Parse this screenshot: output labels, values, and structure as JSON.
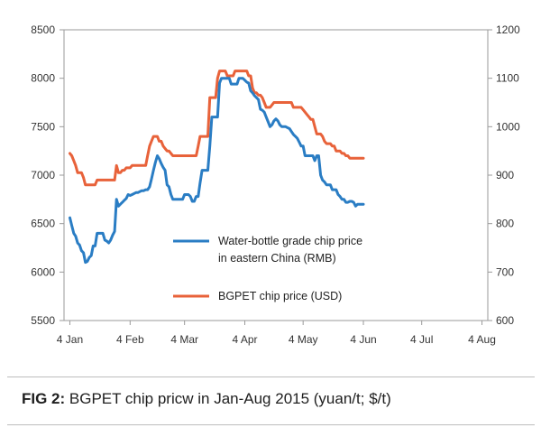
{
  "chart_data": {
    "type": "line",
    "title": "",
    "left_axis": {
      "ylim": [
        5500,
        8500
      ],
      "ticks": [
        "5500",
        "6000",
        "6500",
        "7000",
        "7500",
        "8000",
        "8500"
      ]
    },
    "right_axis": {
      "ylim": [
        600,
        1200
      ],
      "ticks": [
        "600",
        "700",
        "800",
        "900",
        "1000",
        "1100",
        "1200"
      ]
    },
    "x_axis": {
      "range": [
        1,
        219
      ],
      "ticks": [
        {
          "label": "4 Jan",
          "day": 4
        },
        {
          "label": "4 Feb",
          "day": 35
        },
        {
          "label": "4 Mar",
          "day": 63
        },
        {
          "label": "4 Apr",
          "day": 94
        },
        {
          "label": "4 May",
          "day": 124
        },
        {
          "label": "4 Jun",
          "day": 155
        },
        {
          "label": "4 Jul",
          "day": 185
        },
        {
          "label": "4 Aug",
          "day": 216
        }
      ]
    },
    "series": [
      {
        "name": "Water-bottle grade chip price in eastern China (RMB)",
        "legend_lines": [
          "Water-bottle grade chip price",
          "in eastern China (RMB)"
        ],
        "axis": "left",
        "color": "#2a7dc4",
        "points": [
          [
            4,
            6560
          ],
          [
            5,
            6480
          ],
          [
            6,
            6400
          ],
          [
            7,
            6370
          ],
          [
            8,
            6300
          ],
          [
            9,
            6280
          ],
          [
            10,
            6220
          ],
          [
            11,
            6200
          ],
          [
            12,
            6100
          ],
          [
            13,
            6110
          ],
          [
            14,
            6150
          ],
          [
            15,
            6170
          ],
          [
            16,
            6270
          ],
          [
            17,
            6270
          ],
          [
            18,
            6400
          ],
          [
            19,
            6400
          ],
          [
            20,
            6400
          ],
          [
            21,
            6400
          ],
          [
            22,
            6330
          ],
          [
            23,
            6320
          ],
          [
            24,
            6300
          ],
          [
            25,
            6330
          ],
          [
            26,
            6380
          ],
          [
            27,
            6420
          ],
          [
            28,
            6750
          ],
          [
            29,
            6680
          ],
          [
            30,
            6700
          ],
          [
            31,
            6720
          ],
          [
            32,
            6740
          ],
          [
            33,
            6760
          ],
          [
            34,
            6800
          ],
          [
            35,
            6790
          ],
          [
            36,
            6800
          ],
          [
            37,
            6810
          ],
          [
            38,
            6820
          ],
          [
            39,
            6820
          ],
          [
            40,
            6830
          ],
          [
            41,
            6840
          ],
          [
            42,
            6840
          ],
          [
            43,
            6850
          ],
          [
            44,
            6850
          ],
          [
            45,
            6880
          ],
          [
            46,
            6960
          ],
          [
            47,
            7050
          ],
          [
            48,
            7130
          ],
          [
            49,
            7200
          ],
          [
            50,
            7170
          ],
          [
            51,
            7120
          ],
          [
            52,
            7080
          ],
          [
            53,
            7050
          ],
          [
            54,
            6900
          ],
          [
            55,
            6880
          ],
          [
            56,
            6800
          ],
          [
            57,
            6750
          ],
          [
            58,
            6750
          ],
          [
            59,
            6750
          ],
          [
            60,
            6750
          ],
          [
            61,
            6750
          ],
          [
            62,
            6750
          ],
          [
            63,
            6800
          ],
          [
            64,
            6800
          ],
          [
            65,
            6800
          ],
          [
            66,
            6780
          ],
          [
            67,
            6730
          ],
          [
            68,
            6730
          ],
          [
            69,
            6780
          ],
          [
            70,
            6780
          ],
          [
            71,
            6920
          ],
          [
            72,
            7050
          ],
          [
            73,
            7050
          ],
          [
            74,
            7050
          ],
          [
            75,
            7050
          ],
          [
            76,
            7300
          ],
          [
            77,
            7600
          ],
          [
            78,
            7600
          ],
          [
            79,
            7600
          ],
          [
            80,
            7600
          ],
          [
            81,
            7950
          ],
          [
            82,
            8000
          ],
          [
            83,
            8000
          ],
          [
            84,
            8000
          ],
          [
            85,
            8000
          ],
          [
            86,
            8000
          ],
          [
            87,
            7940
          ],
          [
            88,
            7940
          ],
          [
            89,
            7940
          ],
          [
            90,
            7940
          ],
          [
            91,
            8000
          ],
          [
            92,
            8000
          ],
          [
            93,
            8000
          ],
          [
            94,
            7980
          ],
          [
            95,
            7960
          ],
          [
            96,
            7950
          ],
          [
            97,
            7870
          ],
          [
            98,
            7850
          ],
          [
            99,
            7820
          ],
          [
            100,
            7800
          ],
          [
            101,
            7780
          ],
          [
            102,
            7680
          ],
          [
            103,
            7670
          ],
          [
            104,
            7650
          ],
          [
            105,
            7600
          ],
          [
            106,
            7550
          ],
          [
            107,
            7500
          ],
          [
            108,
            7520
          ],
          [
            109,
            7560
          ],
          [
            110,
            7580
          ],
          [
            111,
            7560
          ],
          [
            112,
            7520
          ],
          [
            113,
            7500
          ],
          [
            114,
            7500
          ],
          [
            115,
            7500
          ],
          [
            116,
            7490
          ],
          [
            117,
            7480
          ],
          [
            118,
            7450
          ],
          [
            119,
            7420
          ],
          [
            120,
            7400
          ],
          [
            121,
            7380
          ],
          [
            122,
            7340
          ],
          [
            123,
            7300
          ],
          [
            124,
            7300
          ],
          [
            125,
            7200
          ],
          [
            126,
            7200
          ],
          [
            127,
            7200
          ],
          [
            128,
            7200
          ],
          [
            129,
            7200
          ],
          [
            130,
            7150
          ],
          [
            131,
            7200
          ],
          [
            132,
            7200
          ],
          [
            133,
            7000
          ],
          [
            134,
            6950
          ],
          [
            135,
            6930
          ],
          [
            136,
            6900
          ],
          [
            137,
            6900
          ],
          [
            138,
            6900
          ],
          [
            139,
            6850
          ],
          [
            140,
            6850
          ],
          [
            141,
            6850
          ],
          [
            142,
            6800
          ],
          [
            143,
            6780
          ],
          [
            144,
            6750
          ],
          [
            145,
            6750
          ],
          [
            146,
            6720
          ],
          [
            147,
            6720
          ],
          [
            148,
            6730
          ],
          [
            149,
            6730
          ],
          [
            150,
            6720
          ],
          [
            151,
            6680
          ],
          [
            152,
            6700
          ],
          [
            153,
            6700
          ],
          [
            154,
            6700
          ],
          [
            155,
            6700
          ]
        ]
      },
      {
        "name": "BGPET chip price (USD)",
        "legend_lines": [
          "BGPET chip price (USD)"
        ],
        "axis": "right",
        "color": "#e8623a",
        "points": [
          [
            4,
            945
          ],
          [
            5,
            940
          ],
          [
            6,
            930
          ],
          [
            7,
            920
          ],
          [
            8,
            905
          ],
          [
            9,
            905
          ],
          [
            10,
            905
          ],
          [
            11,
            895
          ],
          [
            12,
            880
          ],
          [
            13,
            880
          ],
          [
            14,
            880
          ],
          [
            15,
            880
          ],
          [
            16,
            880
          ],
          [
            17,
            880
          ],
          [
            18,
            890
          ],
          [
            19,
            890
          ],
          [
            20,
            890
          ],
          [
            21,
            890
          ],
          [
            22,
            890
          ],
          [
            23,
            890
          ],
          [
            24,
            890
          ],
          [
            25,
            890
          ],
          [
            26,
            890
          ],
          [
            27,
            890
          ],
          [
            28,
            920
          ],
          [
            29,
            905
          ],
          [
            30,
            905
          ],
          [
            31,
            910
          ],
          [
            32,
            910
          ],
          [
            33,
            915
          ],
          [
            34,
            915
          ],
          [
            35,
            915
          ],
          [
            36,
            920
          ],
          [
            37,
            920
          ],
          [
            38,
            920
          ],
          [
            39,
            920
          ],
          [
            40,
            920
          ],
          [
            41,
            920
          ],
          [
            42,
            920
          ],
          [
            43,
            920
          ],
          [
            44,
            940
          ],
          [
            45,
            960
          ],
          [
            46,
            970
          ],
          [
            47,
            980
          ],
          [
            48,
            980
          ],
          [
            49,
            980
          ],
          [
            50,
            970
          ],
          [
            51,
            970
          ],
          [
            52,
            960
          ],
          [
            53,
            955
          ],
          [
            54,
            950
          ],
          [
            55,
            950
          ],
          [
            56,
            945
          ],
          [
            57,
            940
          ],
          [
            58,
            940
          ],
          [
            59,
            940
          ],
          [
            60,
            940
          ],
          [
            61,
            940
          ],
          [
            62,
            940
          ],
          [
            63,
            940
          ],
          [
            64,
            940
          ],
          [
            65,
            940
          ],
          [
            66,
            940
          ],
          [
            67,
            940
          ],
          [
            68,
            940
          ],
          [
            69,
            940
          ],
          [
            70,
            960
          ],
          [
            71,
            980
          ],
          [
            72,
            980
          ],
          [
            73,
            980
          ],
          [
            74,
            980
          ],
          [
            75,
            980
          ],
          [
            76,
            1060
          ],
          [
            77,
            1060
          ],
          [
            78,
            1060
          ],
          [
            79,
            1060
          ],
          [
            80,
            1100
          ],
          [
            81,
            1115
          ],
          [
            82,
            1115
          ],
          [
            83,
            1115
          ],
          [
            84,
            1115
          ],
          [
            85,
            1105
          ],
          [
            86,
            1105
          ],
          [
            87,
            1105
          ],
          [
            88,
            1105
          ],
          [
            89,
            1115
          ],
          [
            90,
            1115
          ],
          [
            91,
            1115
          ],
          [
            92,
            1115
          ],
          [
            93,
            1115
          ],
          [
            94,
            1115
          ],
          [
            95,
            1115
          ],
          [
            96,
            1105
          ],
          [
            97,
            1105
          ],
          [
            98,
            1080
          ],
          [
            99,
            1070
          ],
          [
            100,
            1070
          ],
          [
            101,
            1065
          ],
          [
            102,
            1065
          ],
          [
            103,
            1060
          ],
          [
            104,
            1050
          ],
          [
            105,
            1040
          ],
          [
            106,
            1040
          ],
          [
            107,
            1040
          ],
          [
            108,
            1045
          ],
          [
            109,
            1050
          ],
          [
            110,
            1050
          ],
          [
            111,
            1050
          ],
          [
            112,
            1050
          ],
          [
            113,
            1050
          ],
          [
            114,
            1050
          ],
          [
            115,
            1050
          ],
          [
            116,
            1050
          ],
          [
            117,
            1050
          ],
          [
            118,
            1050
          ],
          [
            119,
            1040
          ],
          [
            120,
            1040
          ],
          [
            121,
            1040
          ],
          [
            122,
            1040
          ],
          [
            123,
            1040
          ],
          [
            124,
            1035
          ],
          [
            125,
            1030
          ],
          [
            126,
            1025
          ],
          [
            127,
            1020
          ],
          [
            128,
            1015
          ],
          [
            129,
            1015
          ],
          [
            130,
            1000
          ],
          [
            131,
            985
          ],
          [
            132,
            985
          ],
          [
            133,
            985
          ],
          [
            134,
            980
          ],
          [
            135,
            970
          ],
          [
            136,
            965
          ],
          [
            137,
            965
          ],
          [
            138,
            965
          ],
          [
            139,
            960
          ],
          [
            140,
            960
          ],
          [
            141,
            950
          ],
          [
            142,
            950
          ],
          [
            143,
            950
          ],
          [
            144,
            945
          ],
          [
            145,
            945
          ],
          [
            146,
            940
          ],
          [
            147,
            940
          ],
          [
            148,
            935
          ],
          [
            149,
            935
          ],
          [
            150,
            935
          ],
          [
            151,
            935
          ],
          [
            152,
            935
          ],
          [
            153,
            935
          ],
          [
            154,
            935
          ],
          [
            155,
            935
          ]
        ]
      }
    ]
  },
  "caption": {
    "label": "FIG 2:",
    "text": " BGPET chip pricw in Jan-Aug 2015 (yuan/t; $/t)"
  }
}
